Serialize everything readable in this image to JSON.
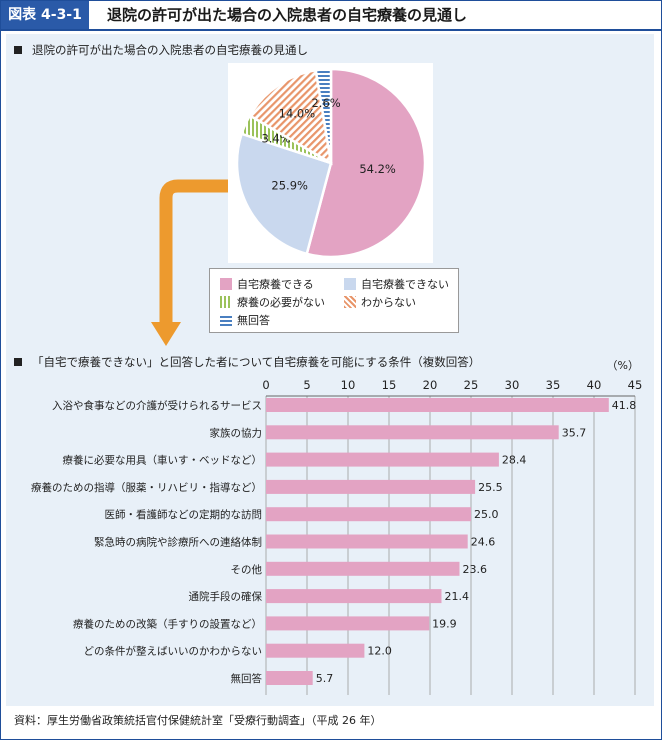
{
  "header": {
    "figure_label": "図表 4-3-1",
    "title": "退院の許可が出た場合の入院患者の自宅療養の見通し"
  },
  "section1": {
    "title": "退院の許可が出た場合の入院患者の自宅療養の見通し"
  },
  "section2": {
    "title": "「自宅で療養できない」と回答した者について自宅療養を可能にする条件（複数回答）"
  },
  "source": "資料：厚生労働省政策統括官付保健統計室「受療行動調査」（平成 26 年）",
  "colors": {
    "pink": "#e3a3c3",
    "lightblue": "#c9d8ee",
    "green": "#9bc25a",
    "orange": "#e8956a",
    "blue": "#4a7fc0",
    "arrow": "#ed9a2e",
    "grid": "#9a9a9a"
  },
  "chart_data": [
    {
      "type": "pie",
      "title": "退院の許可が出た場合の入院患者の自宅療養の見通し",
      "slices": [
        {
          "label": "自宅療養できる",
          "value": 54.2,
          "value_label": "54.2%",
          "color": "#e3a3c3",
          "pattern": "solid"
        },
        {
          "label": "自宅療養できない",
          "value": 25.9,
          "value_label": "25.9%",
          "color": "#c9d8ee",
          "pattern": "solid"
        },
        {
          "label": "療養の必要がない",
          "value": 3.4,
          "value_label": "3.4%",
          "color": "#9bc25a",
          "pattern": "vertical-lines"
        },
        {
          "label": "わからない",
          "value": 14.0,
          "value_label": "14.0%",
          "color": "#e8956a",
          "pattern": "diagonal-lines"
        },
        {
          "label": "無回答",
          "value": 2.6,
          "value_label": "2.6%",
          "color": "#4a7fc0",
          "pattern": "horizontal-lines"
        }
      ],
      "legend_placement": "bottom"
    },
    {
      "type": "bar",
      "orientation": "horizontal",
      "title": "「自宅で療養できない」と回答した者について自宅療養を可能にする条件（複数回答）",
      "unit_label": "（%）",
      "xlim": [
        0,
        45
      ],
      "ticks": [
        0,
        5,
        10,
        15,
        20,
        25,
        30,
        35,
        40,
        45
      ],
      "grid": true,
      "bar_color": "#e3a3c3",
      "categories": [
        "入浴や食事などの介護が受けられるサービス",
        "家族の協力",
        "療養に必要な用具（車いす・ベッドなど）",
        "療養のための指導（服薬・リハビリ・指導など）",
        "医師・看護師などの定期的な訪問",
        "緊急時の病院や診療所への連絡体制",
        "その他",
        "通院手段の確保",
        "療養のための改築（手すりの設置など）",
        "どの条件が整えばいいのかわからない",
        "無回答"
      ],
      "values": [
        41.8,
        35.7,
        28.4,
        25.5,
        25.0,
        24.6,
        23.6,
        21.4,
        19.9,
        12.0,
        5.7
      ],
      "value_labels": [
        "41.8",
        "35.7",
        "28.4",
        "25.5",
        "25.0",
        "24.6",
        "23.6",
        "21.4",
        "19.9",
        "12.0",
        "5.7"
      ]
    }
  ]
}
